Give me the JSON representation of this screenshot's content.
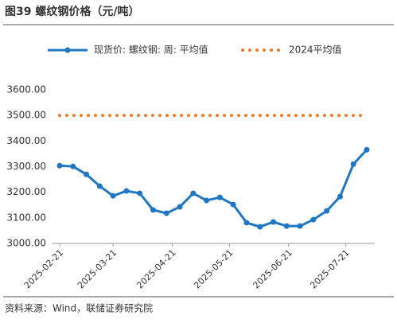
{
  "chart_data": {
    "type": "line",
    "title": "图39 螺纹钢价格（元/吨）",
    "source": "资料来源：Wind，联储证券研究院",
    "x": [
      "2025-02-21",
      "2025-02-28",
      "2025-03-07",
      "2025-03-14",
      "2025-03-21",
      "2025-03-28",
      "2025-04-04",
      "2025-04-11",
      "2025-04-18",
      "2025-04-25",
      "2025-05-02",
      "2025-05-09",
      "2025-05-16",
      "2025-05-23",
      "2025-05-30",
      "2025-06-06",
      "2025-06-13",
      "2025-06-20",
      "2025-06-27",
      "2025-07-04",
      "2025-07-11",
      "2025-07-18",
      "2025-07-25",
      "2025-08-01"
    ],
    "series": [
      {
        "name": "现货价: 螺纹钢: 周: 平均值",
        "color": "#1f77c4",
        "style": "solid-marker",
        "values": [
          3304,
          3301,
          3270,
          3224,
          3186,
          3205,
          3196,
          3131,
          3118,
          3143,
          3196,
          3168,
          3180,
          3152,
          3081,
          3065,
          3084,
          3068,
          3068,
          3093,
          3127,
          3183,
          3310,
          3366
        ]
      },
      {
        "name": "2024平均值",
        "color": "#f47a1f",
        "style": "dotted",
        "values": [
          3500,
          3500,
          3500,
          3500,
          3500,
          3500,
          3500,
          3500,
          3500,
          3500,
          3500,
          3500,
          3500,
          3500,
          3500,
          3500,
          3500,
          3500,
          3500,
          3500,
          3500,
          3500,
          3500,
          3500
        ]
      }
    ],
    "xticks": [
      "2025-02-21",
      "2025-03-21",
      "2025-04-21",
      "2025-05-21",
      "2025-06-21",
      "2025-07-21"
    ],
    "ylim": [
      3000,
      3600
    ],
    "yticks": [
      {
        "value": 3000,
        "label": "3000.00"
      },
      {
        "value": 3100,
        "label": "3100.00"
      },
      {
        "value": 3200,
        "label": "3200.00"
      },
      {
        "value": 3300,
        "label": "3300.00"
      },
      {
        "value": 3400,
        "label": "3400.00"
      },
      {
        "value": 3500,
        "label": "3500.00"
      },
      {
        "value": 3600,
        "label": "3600.00"
      }
    ],
    "grid": false
  }
}
